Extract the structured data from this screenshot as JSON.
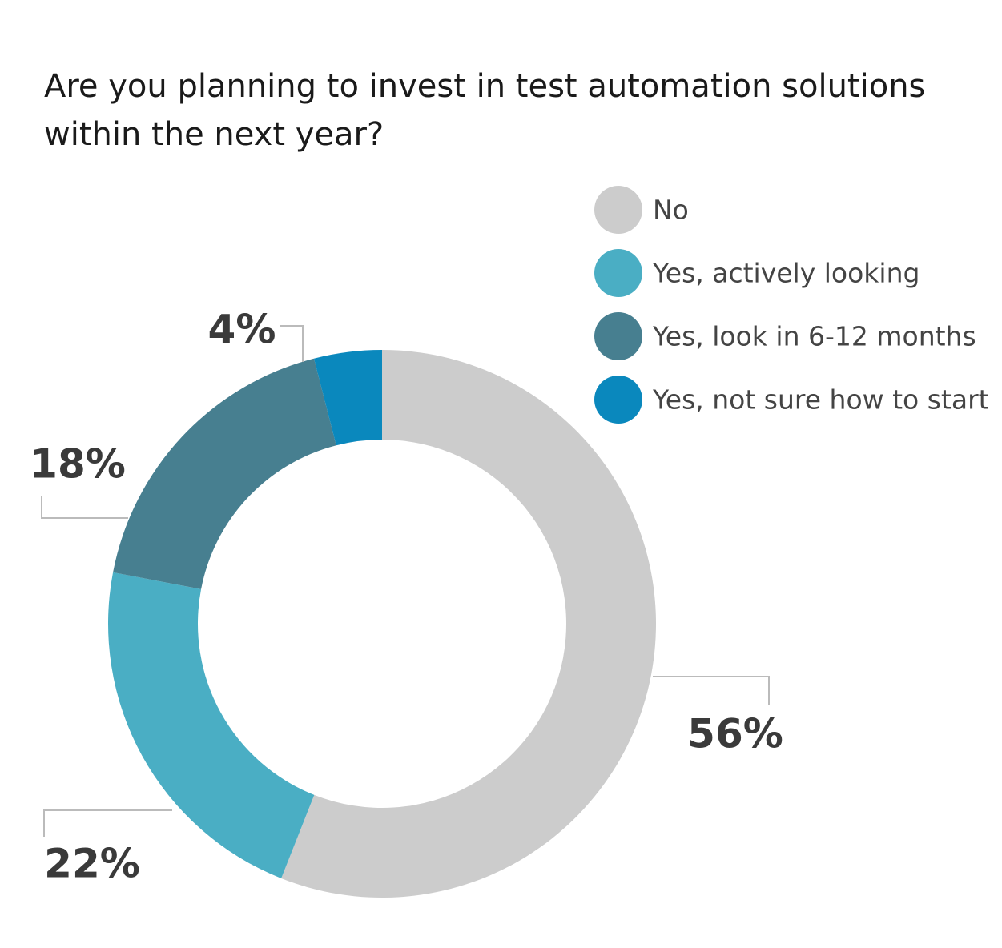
{
  "chart_data": {
    "type": "pie",
    "title": "Are you planning to invest in test automation solutions within the next year?",
    "categories": [
      "No",
      "Yes, actively looking",
      "Yes, look in 6-12 months",
      "Yes, not sure how to start"
    ],
    "values": [
      56,
      22,
      18,
      4
    ],
    "value_labels": [
      "56%",
      "22%",
      "18%",
      "4%"
    ],
    "colors": [
      "#cccccc",
      "#4aaec4",
      "#477f90",
      "#0a88bd"
    ],
    "legend": "top-right"
  }
}
